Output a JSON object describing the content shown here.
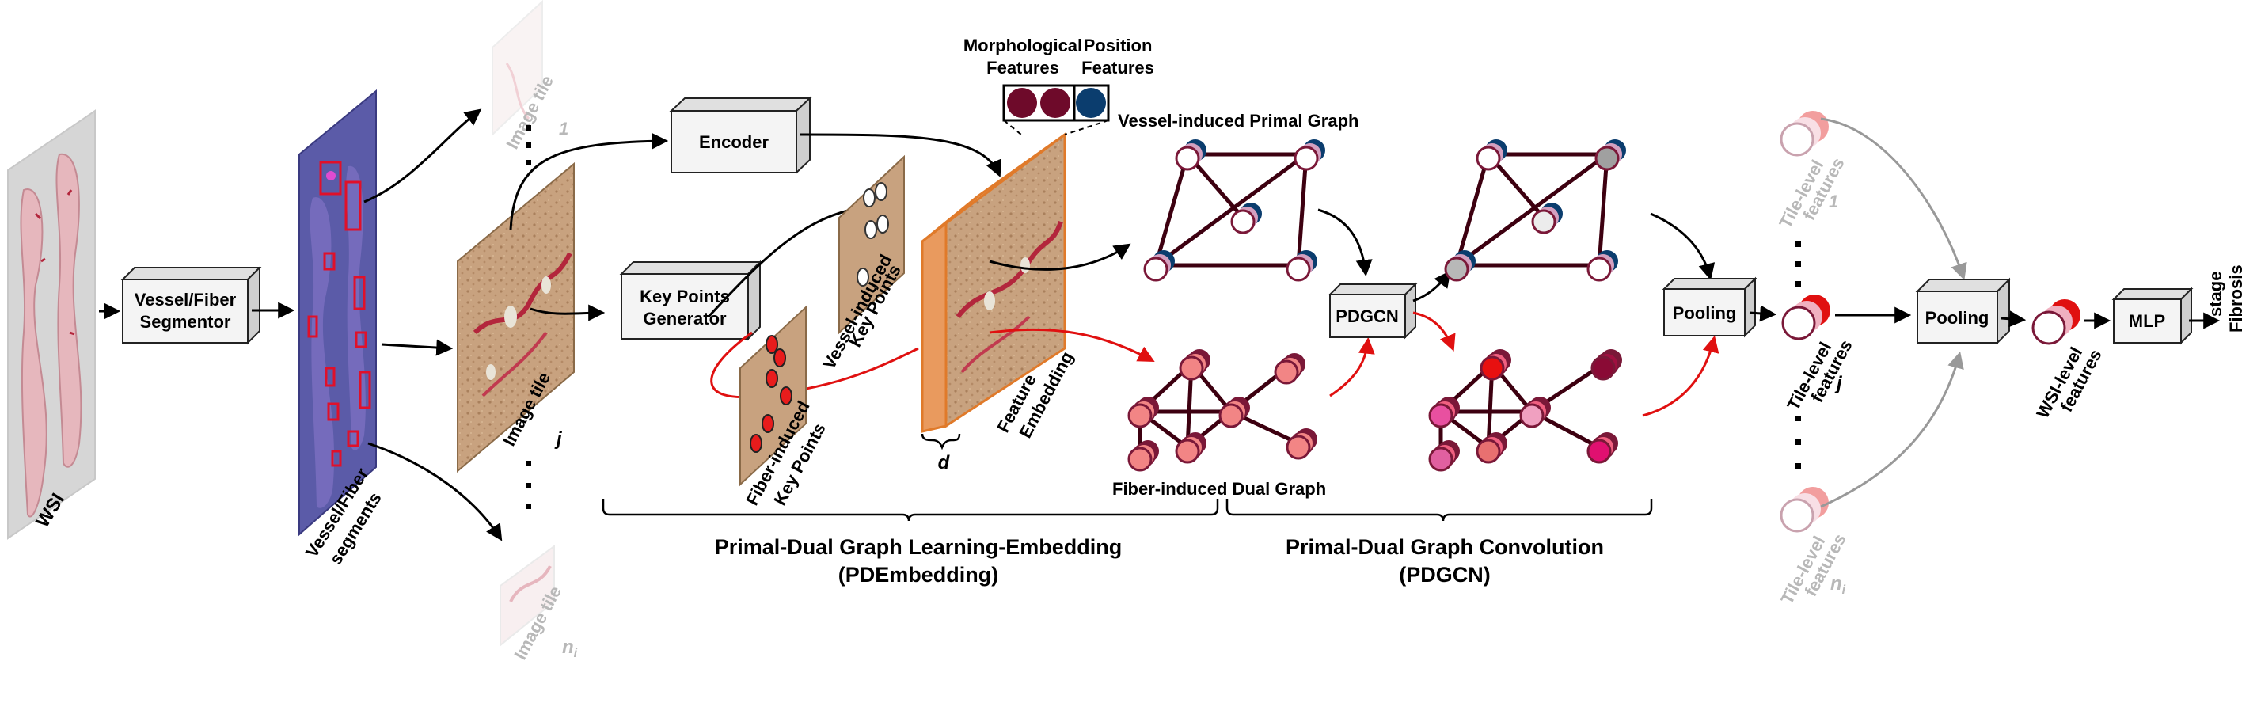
{
  "labels": {
    "wsi": "WSI",
    "segmentor_line1": "Vessel/Fiber",
    "segmentor_line2": "Segmentor",
    "segments_line1": "Vessel/Fiber",
    "segments_line2": "segments",
    "image_tile": "Image tile",
    "tile_index_1": "1",
    "tile_index_j": "j",
    "tile_index_ni": "n",
    "tile_index_ni_sub": "i",
    "encoder": "Encoder",
    "keypoints_line1": "Key Points",
    "keypoints_line2": "Generator",
    "vessel_kp_line1": "Vessel-induced",
    "vessel_kp_line2": "Key Points",
    "fiber_kp_line1": "Fiber-induced",
    "fiber_kp_line2": "Key Points",
    "feature_line1": "Feature",
    "feature_line2": "Embedding",
    "dim_d": "d",
    "morph_line1": "Morphological",
    "morph_line2": "Features",
    "pos_line1": "Position",
    "pos_line2": "Features",
    "primal_graph": "Vessel-induced Primal Graph",
    "dual_graph": "Fiber-induced Dual Graph",
    "pdgcn": "PDGCN",
    "pooling": "Pooling",
    "tile_features_line1": "Tile-level",
    "tile_features_line2": "features",
    "wsi_features_line1": "WSI-level",
    "wsi_features_line2": "features",
    "mlp": "MLP",
    "fibrosis_line1": "Fibrosis",
    "fibrosis_line2": "stage",
    "section1_line1": "Primal-Dual Graph Learning-Embedding",
    "section1_line2": "(PDEmbedding)",
    "section2_line1": "Primal-Dual Graph Convolution",
    "section2_line2": "(PDGCN)"
  },
  "colors": {
    "wsi_bg": "#d9d9d9",
    "segments_bg": "#5b5ba8",
    "tissue": "#c8a27f",
    "morph_feature": "#6e0a2a",
    "pos_feature": "#0b3d6e",
    "vessel_node": "#ffffff",
    "fiber_node": "#f28585",
    "node_ring": "#7a1838",
    "edge": "#3d0010",
    "red_accent": "#e01010"
  }
}
